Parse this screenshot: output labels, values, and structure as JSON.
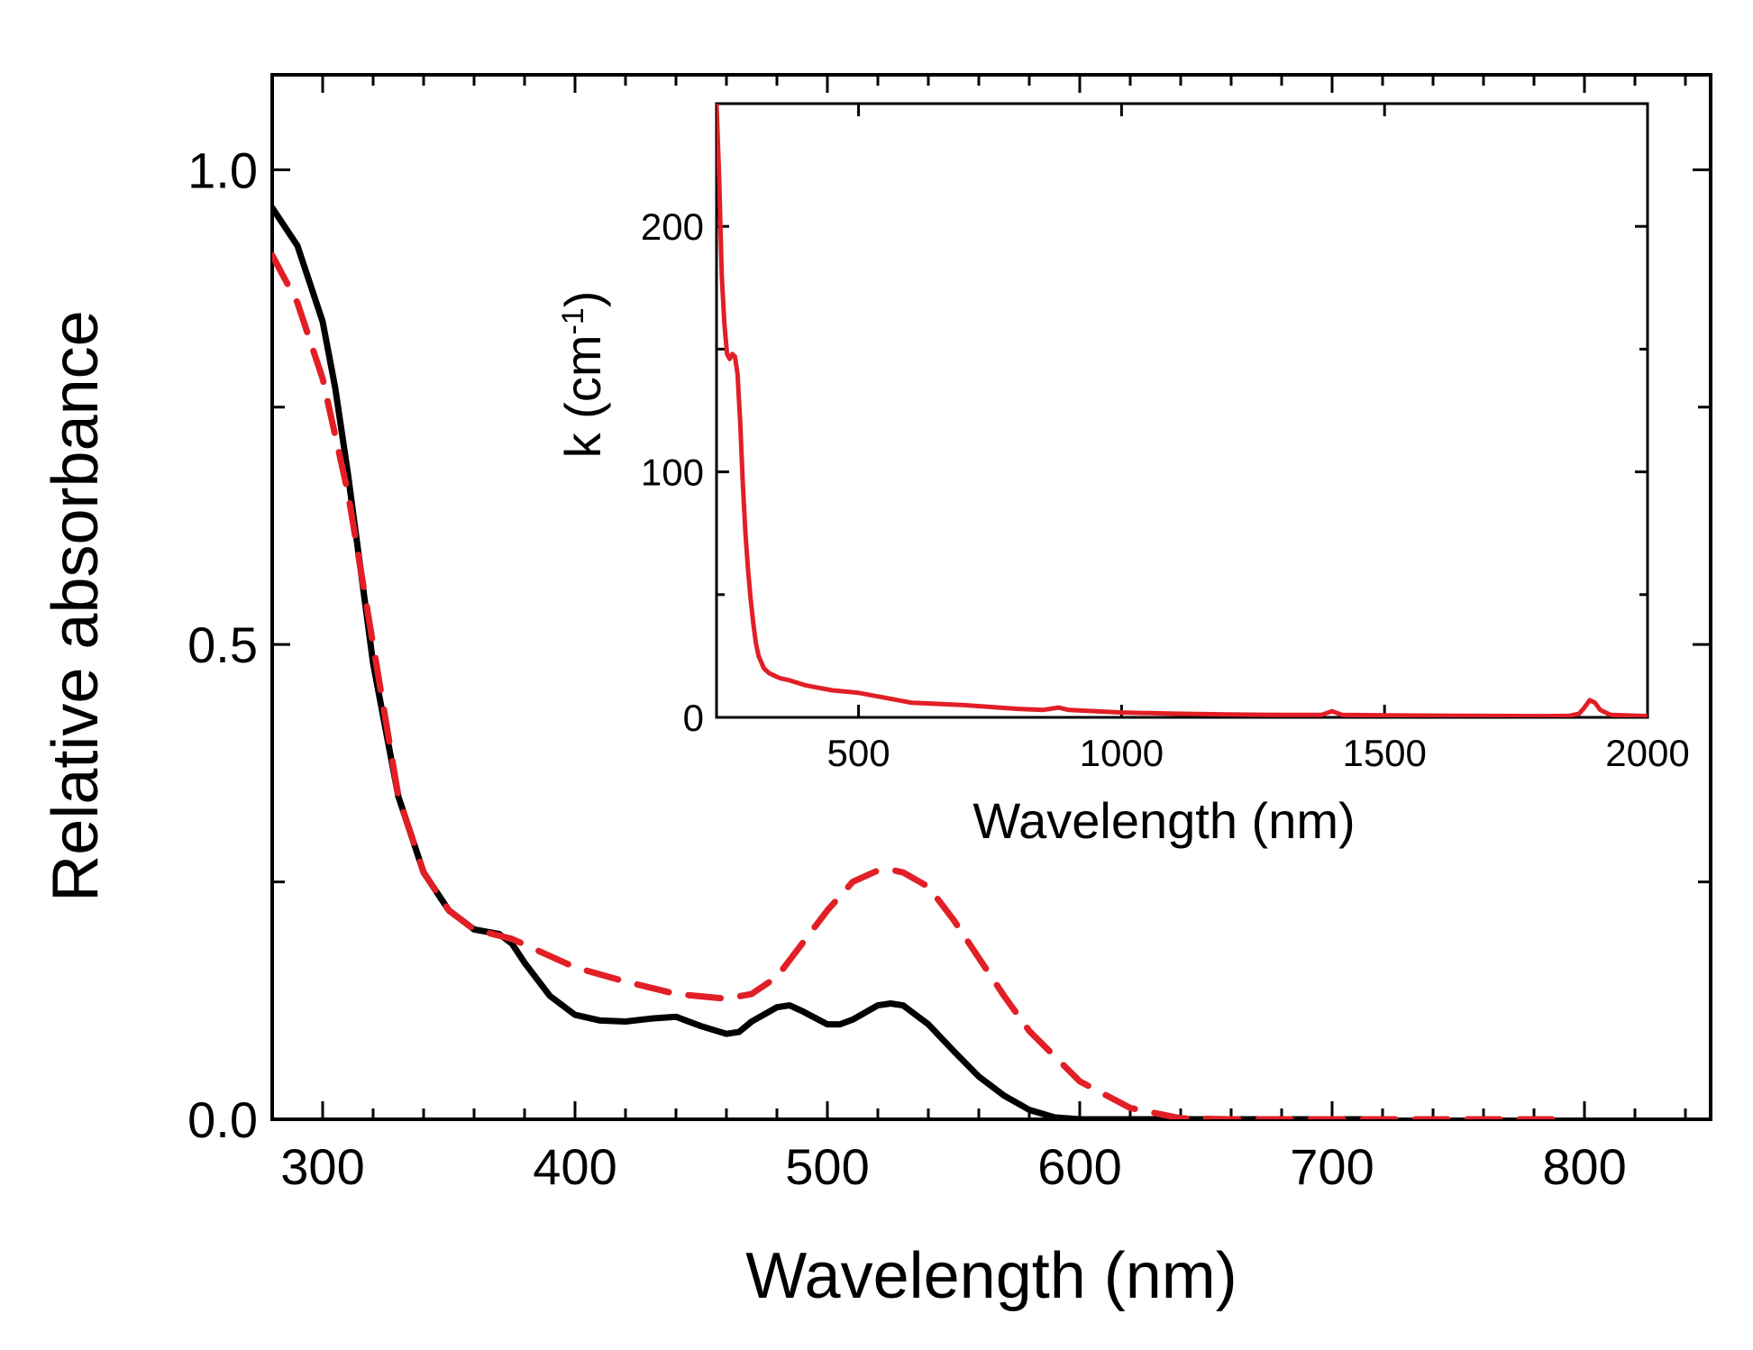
{
  "chart_data": [
    {
      "type": "line",
      "role": "main",
      "xlabel": "Wavelength (nm)",
      "ylabel": "Relative absorbance",
      "xlim": [
        280,
        850
      ],
      "ylim": [
        0,
        1.1
      ],
      "x_ticks": [
        300,
        400,
        500,
        600,
        700,
        800
      ],
      "x_tick_labels": [
        "300",
        "400",
        "500",
        "600",
        "700",
        "800"
      ],
      "y_ticks": [
        0,
        0.5,
        1.0
      ],
      "y_tick_labels": [
        "0.0",
        "0.5",
        "1.0"
      ],
      "series": [
        {
          "name": "solid",
          "color": "#000000",
          "dash": "solid",
          "x": [
            280,
            290,
            300,
            305,
            310,
            315,
            320,
            330,
            340,
            350,
            360,
            370,
            375,
            380,
            390,
            400,
            410,
            420,
            430,
            440,
            450,
            460,
            465,
            470,
            480,
            485,
            490,
            500,
            505,
            510,
            520,
            525,
            530,
            540,
            550,
            560,
            570,
            580,
            590,
            600,
            620,
            650,
            700,
            720
          ],
          "y": [
            0.96,
            0.92,
            0.84,
            0.77,
            0.68,
            0.58,
            0.48,
            0.34,
            0.26,
            0.22,
            0.2,
            0.195,
            0.185,
            0.165,
            0.13,
            0.11,
            0.104,
            0.103,
            0.106,
            0.108,
            0.098,
            0.09,
            0.092,
            0.103,
            0.118,
            0.12,
            0.114,
            0.1,
            0.1,
            0.105,
            0.12,
            0.122,
            0.12,
            0.1,
            0.072,
            0.045,
            0.025,
            0.01,
            0.002,
            0.0,
            0.0,
            0.0,
            0.0,
            0.0
          ]
        },
        {
          "name": "dashed",
          "color": "#e21f26",
          "dash": "dashed",
          "x": [
            280,
            290,
            300,
            310,
            320,
            330,
            340,
            350,
            360,
            375,
            400,
            420,
            440,
            460,
            470,
            480,
            490,
            500,
            510,
            520,
            525,
            530,
            540,
            550,
            560,
            570,
            580,
            600,
            620,
            640,
            660,
            700,
            750,
            790
          ],
          "y": [
            0.91,
            0.86,
            0.78,
            0.66,
            0.5,
            0.34,
            0.26,
            0.22,
            0.2,
            0.19,
            0.16,
            0.145,
            0.132,
            0.127,
            0.132,
            0.15,
            0.185,
            0.22,
            0.25,
            0.262,
            0.263,
            0.26,
            0.245,
            0.21,
            0.17,
            0.13,
            0.093,
            0.04,
            0.012,
            0.001,
            0.0,
            0.0,
            0.0,
            0.0
          ]
        }
      ]
    },
    {
      "type": "line",
      "role": "inset",
      "xlabel": "Wavelength (nm)",
      "ylabel": "k (cm",
      "ylabel_superscript": "-1",
      "ylabel_suffix": ")",
      "xlim": [
        230,
        2000
      ],
      "ylim": [
        0,
        250
      ],
      "x_ticks": [
        500,
        1000,
        1500,
        2000
      ],
      "x_tick_labels": [
        "500",
        "1000",
        "1500",
        "2000"
      ],
      "y_ticks": [
        0,
        100,
        200
      ],
      "y_tick_labels": [
        "0",
        "100",
        "200"
      ],
      "series": [
        {
          "name": "k",
          "color": "#e21f26",
          "x": [
            230,
            235,
            240,
            245,
            250,
            255,
            260,
            265,
            270,
            275,
            280,
            285,
            290,
            295,
            300,
            305,
            310,
            320,
            330,
            340,
            350,
            370,
            400,
            450,
            500,
            550,
            600,
            700,
            800,
            850,
            880,
            900,
            1000,
            1100,
            1200,
            1300,
            1380,
            1400,
            1420,
            1500,
            1600,
            1700,
            1800,
            1850,
            1870,
            1880,
            1890,
            1900,
            1910,
            1930,
            2000
          ],
          "y": [
            250,
            220,
            180,
            160,
            148,
            146,
            148,
            147,
            140,
            120,
            95,
            75,
            60,
            48,
            38,
            30,
            25,
            20,
            18,
            17,
            16,
            15,
            13,
            11,
            10,
            8,
            6,
            5,
            3.5,
            3,
            4,
            3,
            2,
            1.5,
            1.2,
            1,
            1,
            2.5,
            1,
            0.8,
            0.7,
            0.6,
            0.5,
            0.6,
            1.5,
            4,
            7,
            6,
            3,
            1,
            0.5
          ]
        }
      ]
    }
  ]
}
